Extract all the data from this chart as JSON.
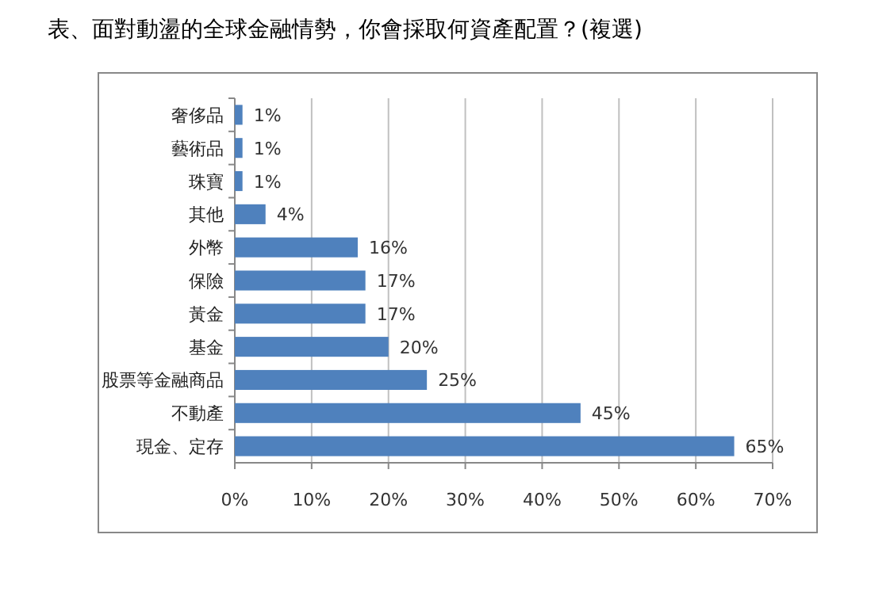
{
  "chart_data": {
    "type": "bar",
    "orientation": "horizontal",
    "title": "表、面對動盪的全球金融情勢，你會採取何資產配置？(複選)",
    "categories": [
      "奢侈品",
      "藝術品",
      "珠寶",
      "其他",
      "外幣",
      "保險",
      "黃金",
      "基金",
      "股票等金融商品",
      "不動產",
      "現金、定存"
    ],
    "values": [
      1,
      1,
      1,
      4,
      16,
      17,
      17,
      20,
      25,
      45,
      65
    ],
    "value_labels": [
      "1%",
      "1%",
      "1%",
      "4%",
      "16%",
      "17%",
      "17%",
      "20%",
      "25%",
      "45%",
      "65%"
    ],
    "color": "#4f81bd",
    "xlim": [
      0,
      70
    ],
    "xticks": [
      {
        "value": 0,
        "label": "0%"
      },
      {
        "value": 10,
        "label": "10%"
      },
      {
        "value": 20,
        "label": "20%"
      },
      {
        "value": 30,
        "label": "30%"
      },
      {
        "value": 40,
        "label": "40%"
      },
      {
        "value": 50,
        "label": "50%"
      },
      {
        "value": 60,
        "label": "60%"
      },
      {
        "value": 70,
        "label": "70%"
      }
    ],
    "grid": "x"
  }
}
